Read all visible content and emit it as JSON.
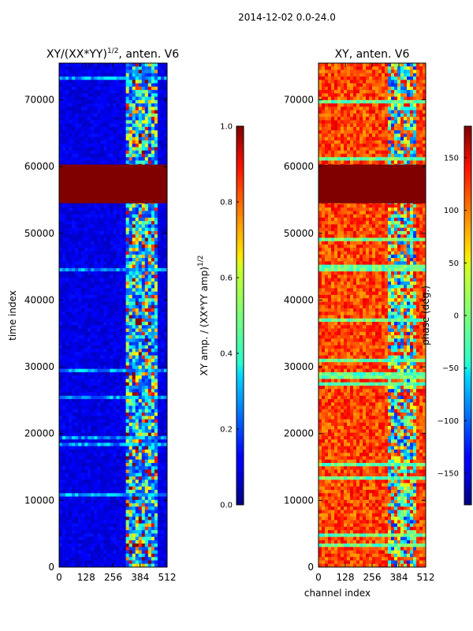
{
  "suptitle": "2014-12-02 0.0-24.0",
  "colors": {
    "colormap": "jet",
    "saturated_band": "#800000",
    "axis_frame": "#000000"
  },
  "chart_data": [
    {
      "type": "heatmap",
      "title_main": "XY/(XX*YY)",
      "title_sup": "1/2",
      "title_tail": ", anten. V6",
      "xlabel": "",
      "ylabel": "time index",
      "xlim": [
        0,
        512
      ],
      "ylim": [
        0,
        75500
      ],
      "xticks": [
        "0",
        "128",
        "256",
        "384",
        "512"
      ],
      "yticks": [
        "0",
        "10000",
        "20000",
        "30000",
        "40000",
        "50000",
        "60000",
        "70000"
      ],
      "colorbar": {
        "label_main": "XY amp. / (XX*YY amp)",
        "label_sup": "1/2",
        "range": [
          0.0,
          1.0
        ],
        "ticks": [
          "0.0",
          "0.2",
          "0.4",
          "0.6",
          "0.8",
          "1.0"
        ]
      },
      "saturated_band_time": [
        54500,
        60300
      ]
    },
    {
      "type": "heatmap",
      "title_main": "XY, anten. V6",
      "title_sup": "",
      "title_tail": "",
      "xlabel": "channel index",
      "ylabel": "",
      "xlim": [
        0,
        512
      ],
      "ylim": [
        0,
        75500
      ],
      "xticks": [
        "0",
        "128",
        "256",
        "384",
        "512"
      ],
      "yticks": [
        "0",
        "10000",
        "20000",
        "30000",
        "40000",
        "50000",
        "60000",
        "70000"
      ],
      "colorbar": {
        "label_main": "phase (deg.)",
        "label_sup": "",
        "range": [
          -180,
          180
        ],
        "ticks": [
          "−150",
          "−100",
          "−50",
          "0",
          "50",
          "100",
          "150"
        ]
      },
      "saturated_band_time": [
        54500,
        60300
      ]
    }
  ]
}
